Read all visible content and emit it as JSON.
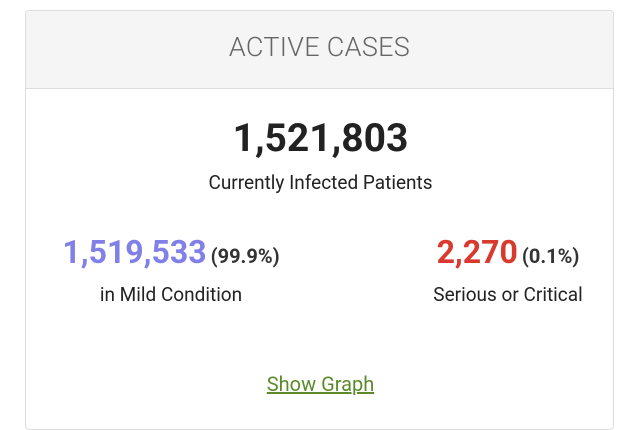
{
  "header": {
    "title": "ACTIVE CASES"
  },
  "total": {
    "value": "1,521,803",
    "label": "Currently Infected Patients"
  },
  "mild": {
    "value": "1,519,533",
    "percent": "(99.9%)",
    "label": "in Mild Condition"
  },
  "critical": {
    "value": "2,270",
    "percent": "(0.1%)",
    "label": "Serious or Critical"
  },
  "link": "Show Graph"
}
